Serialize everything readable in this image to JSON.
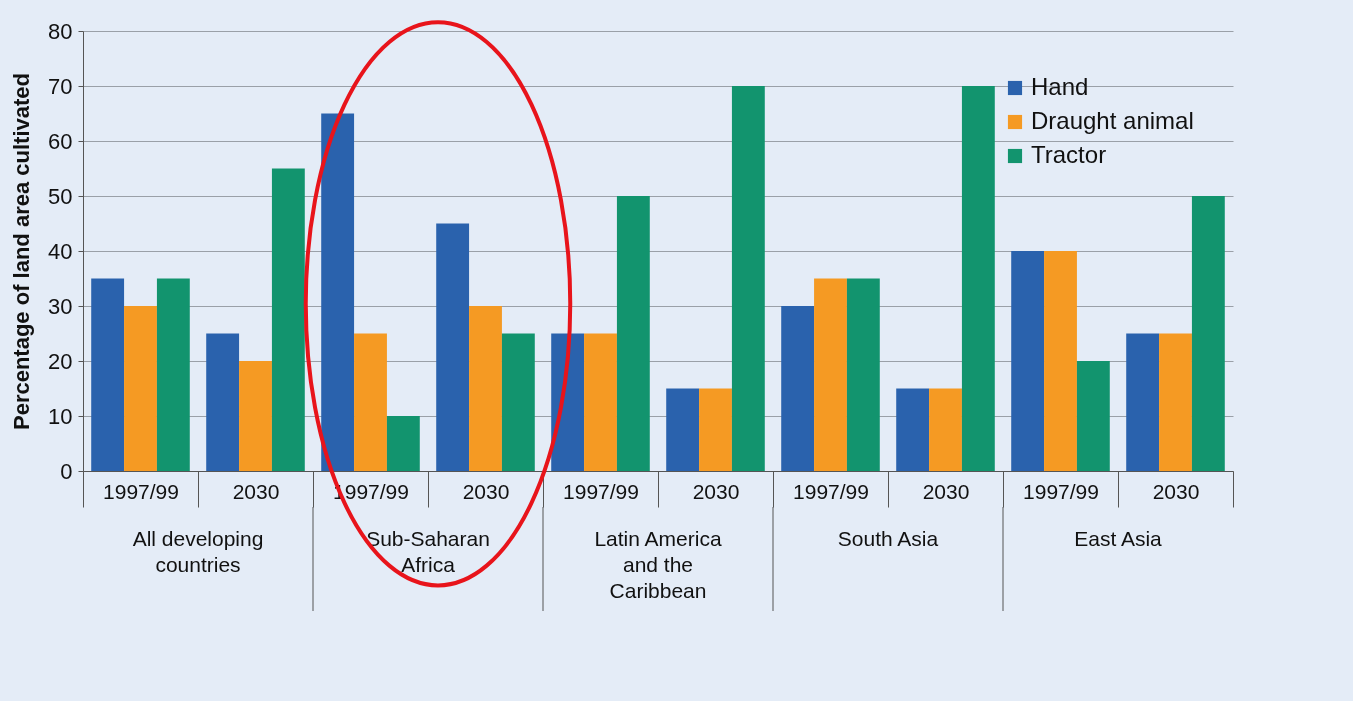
{
  "chart_data": {
    "type": "bar",
    "ylabel": "Percentage of land area cultivated",
    "categories": [
      "1997/99",
      "2030",
      "1997/99",
      "2030",
      "1997/99",
      "2030",
      "1997/99",
      "2030",
      "1997/99",
      "2030"
    ],
    "series": [
      {
        "name": "Hand",
        "color": "#2a62ad",
        "values": [
          35,
          25,
          65,
          45,
          25,
          15,
          30,
          15,
          40,
          25
        ]
      },
      {
        "name": "Draught animal",
        "color": "#f59a23",
        "values": [
          30,
          20,
          25,
          30,
          25,
          15,
          35,
          15,
          40,
          25
        ]
      },
      {
        "name": "Tractor",
        "color": "#12946e",
        "values": [
          35,
          55,
          10,
          25,
          50,
          70,
          35,
          70,
          20,
          50
        ]
      }
    ],
    "annotations": [
      "All developing countries",
      "Sub-Saharan Africa",
      "Latin America and the Caribbean",
      "South Asia",
      "East Asia"
    ],
    "ylim": [
      0,
      80
    ],
    "yticks": [
      0,
      10,
      20,
      30,
      40,
      50,
      60,
      70,
      80
    ],
    "grid": true,
    "legend": "top right"
  }
}
